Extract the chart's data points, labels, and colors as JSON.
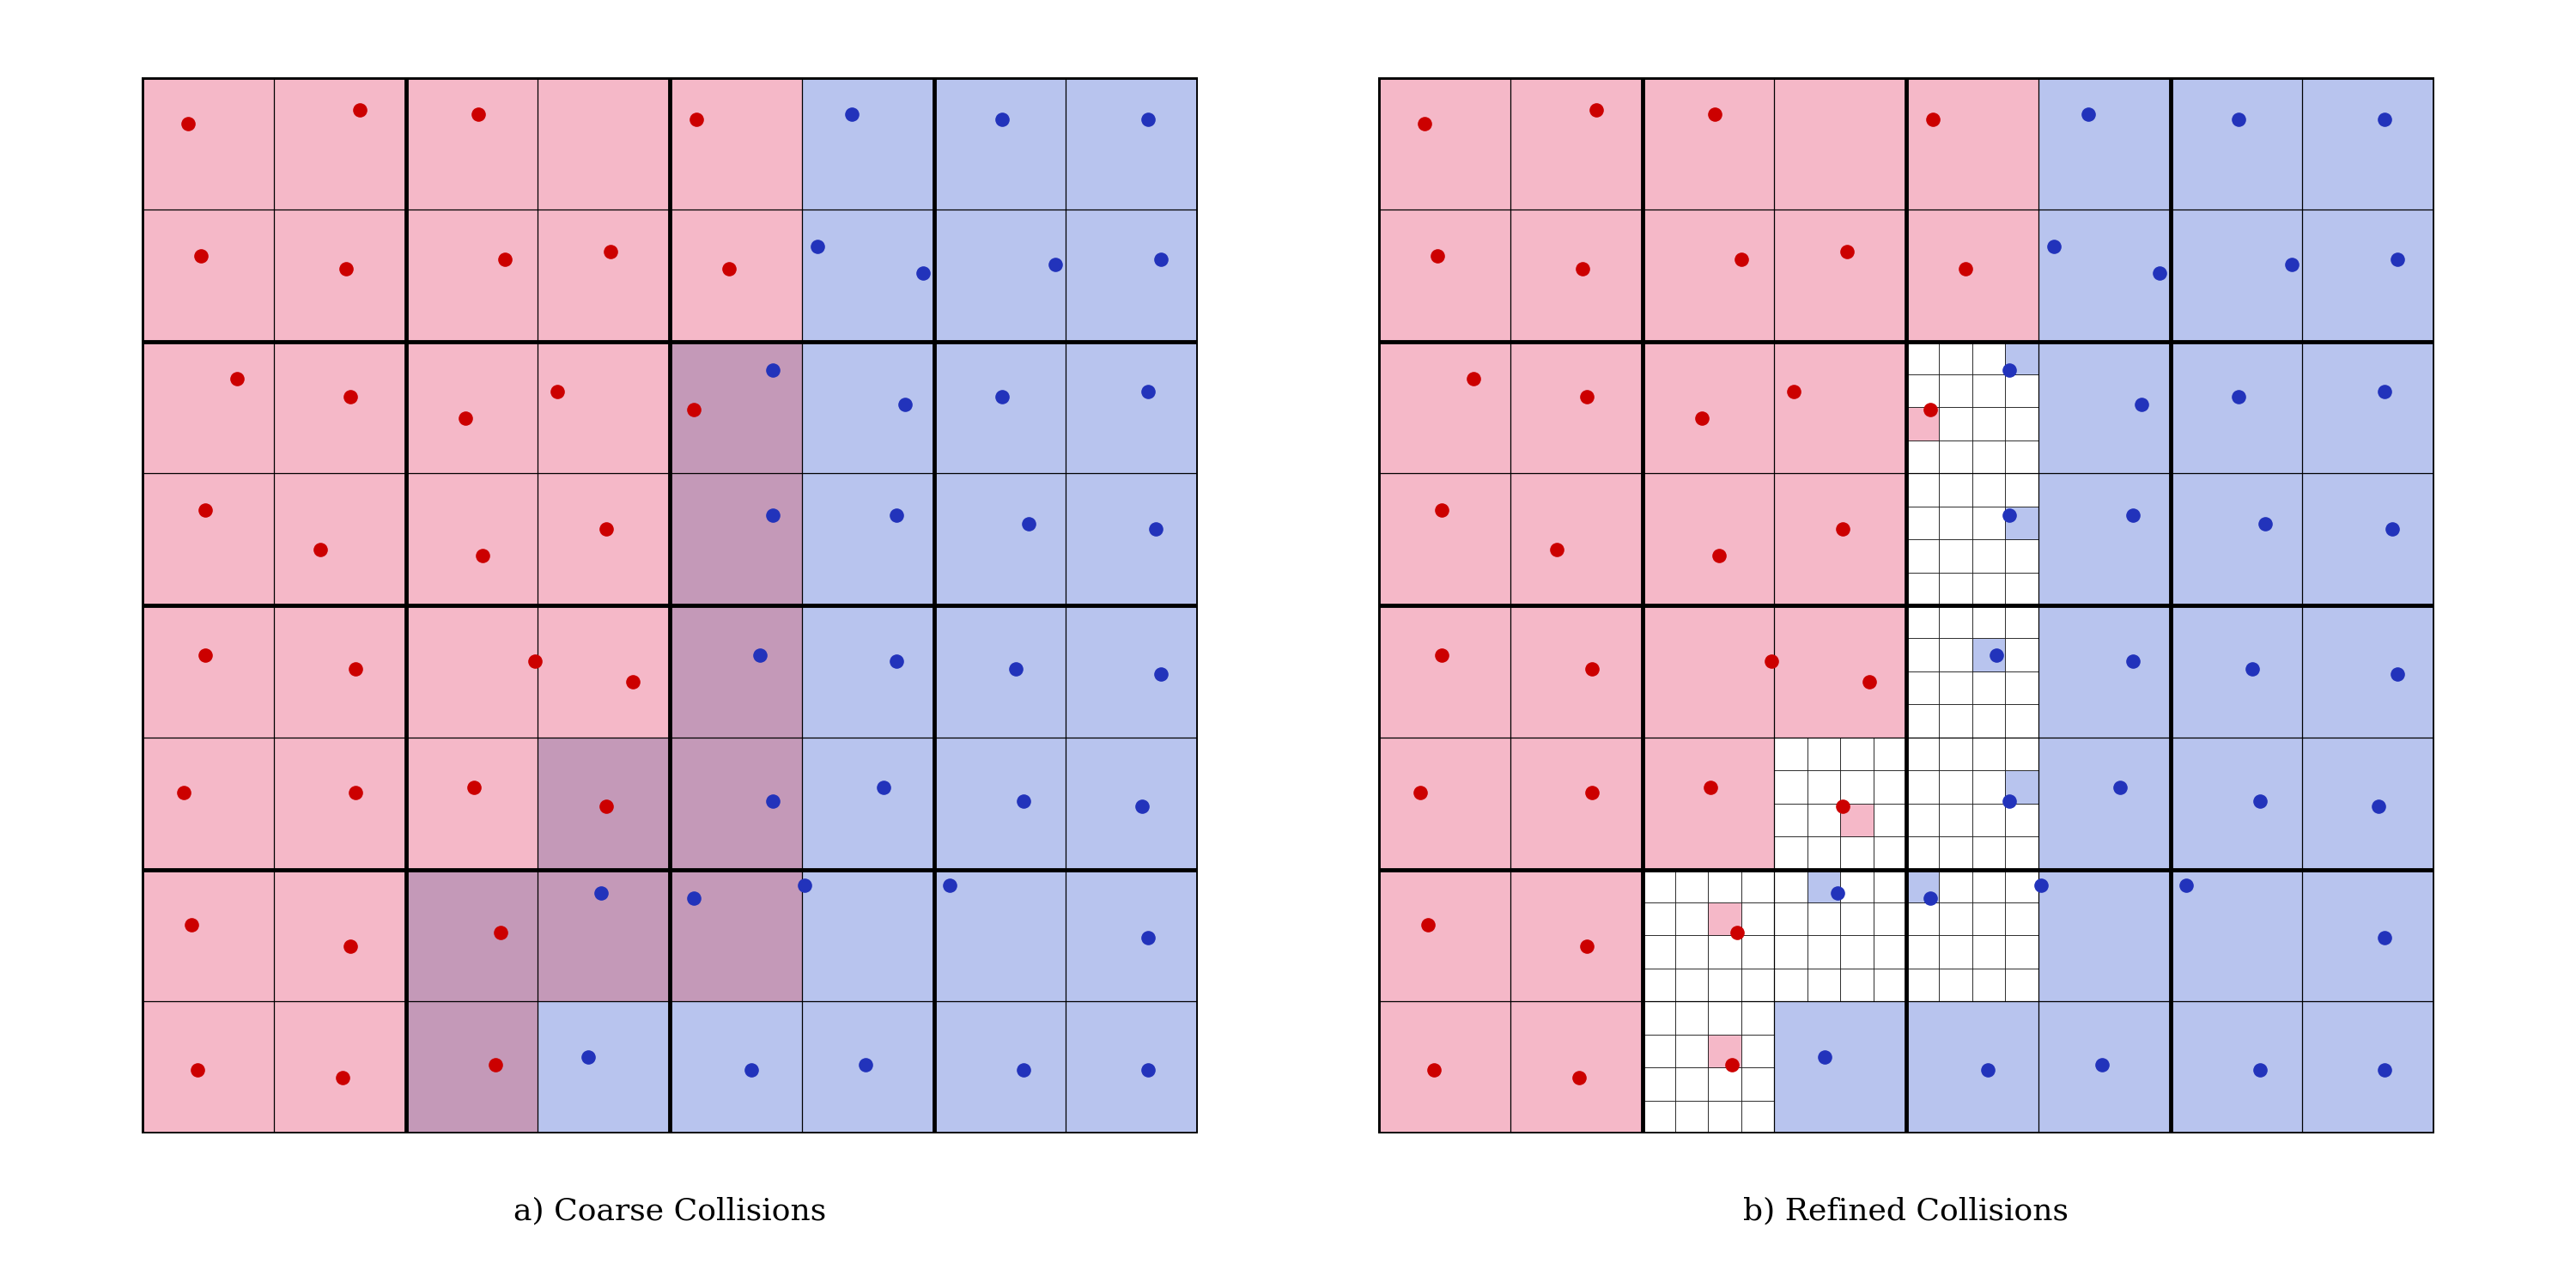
{
  "title_left": "a) Coarse Collisions",
  "title_right": "b) Refined Collisions",
  "title_fontsize": 26,
  "color_red_file": "#F5B8C8",
  "color_blue_file": "#B8C4EE",
  "color_purple": "#C499B8",
  "color_white": "#FFFFFF",
  "red_points": [
    [
      0.35,
      7.65
    ],
    [
      1.65,
      7.75
    ],
    [
      2.55,
      7.72
    ],
    [
      4.2,
      7.68
    ],
    [
      0.45,
      6.65
    ],
    [
      1.55,
      6.55
    ],
    [
      2.75,
      6.62
    ],
    [
      3.55,
      6.68
    ],
    [
      4.45,
      6.55
    ],
    [
      0.72,
      5.72
    ],
    [
      1.58,
      5.58
    ],
    [
      2.45,
      5.42
    ],
    [
      3.15,
      5.62
    ],
    [
      4.18,
      5.48
    ],
    [
      0.48,
      4.72
    ],
    [
      1.35,
      4.42
    ],
    [
      2.58,
      4.38
    ],
    [
      3.52,
      4.58
    ],
    [
      0.48,
      3.62
    ],
    [
      1.62,
      3.52
    ],
    [
      2.98,
      3.58
    ],
    [
      3.72,
      3.42
    ],
    [
      0.32,
      2.58
    ],
    [
      1.62,
      2.58
    ],
    [
      2.52,
      2.62
    ],
    [
      3.52,
      2.48
    ],
    [
      0.38,
      1.58
    ],
    [
      1.58,
      1.42
    ],
    [
      2.72,
      1.52
    ],
    [
      0.42,
      0.48
    ],
    [
      1.52,
      0.42
    ],
    [
      2.68,
      0.52
    ]
  ],
  "blue_points": [
    [
      5.38,
      7.72
    ],
    [
      6.52,
      7.68
    ],
    [
      7.62,
      7.68
    ],
    [
      5.12,
      6.72
    ],
    [
      5.92,
      6.52
    ],
    [
      6.92,
      6.58
    ],
    [
      7.72,
      6.62
    ],
    [
      4.78,
      5.78
    ],
    [
      5.78,
      5.52
    ],
    [
      6.52,
      5.58
    ],
    [
      7.62,
      5.62
    ],
    [
      4.78,
      4.68
    ],
    [
      5.72,
      4.68
    ],
    [
      6.72,
      4.62
    ],
    [
      7.68,
      4.58
    ],
    [
      4.68,
      3.62
    ],
    [
      5.72,
      3.58
    ],
    [
      6.62,
      3.52
    ],
    [
      7.72,
      3.48
    ],
    [
      4.78,
      2.52
    ],
    [
      5.62,
      2.62
    ],
    [
      6.68,
      2.52
    ],
    [
      7.58,
      2.48
    ],
    [
      3.48,
      1.82
    ],
    [
      4.18,
      1.78
    ],
    [
      5.02,
      1.88
    ],
    [
      6.12,
      1.88
    ],
    [
      7.62,
      1.48
    ],
    [
      3.38,
      0.58
    ],
    [
      4.62,
      0.48
    ],
    [
      5.48,
      0.52
    ],
    [
      6.68,
      0.48
    ],
    [
      7.62,
      0.48
    ]
  ],
  "cell_colors": {
    "0,7": "red",
    "1,7": "red",
    "2,7": "red",
    "3,7": "red",
    "4,7": "red",
    "5,7": "blue",
    "6,7": "blue",
    "7,7": "blue",
    "0,6": "red",
    "1,6": "red",
    "2,6": "red",
    "3,6": "red",
    "4,6": "red",
    "5,6": "blue",
    "6,6": "blue",
    "7,6": "blue",
    "0,5": "red",
    "1,5": "red",
    "2,5": "red",
    "3,5": "red",
    "4,5": "purple",
    "5,5": "blue",
    "6,5": "blue",
    "7,5": "blue",
    "0,4": "red",
    "1,4": "red",
    "2,4": "red",
    "3,4": "red",
    "4,4": "purple",
    "5,4": "blue",
    "6,4": "blue",
    "7,4": "blue",
    "0,3": "red",
    "1,3": "red",
    "2,3": "red",
    "3,3": "red",
    "4,3": "purple",
    "5,3": "blue",
    "6,3": "blue",
    "7,3": "blue",
    "0,2": "red",
    "1,2": "red",
    "2,2": "red",
    "3,2": "purple",
    "4,2": "purple",
    "5,2": "blue",
    "6,2": "blue",
    "7,2": "blue",
    "0,1": "red",
    "1,1": "red",
    "2,1": "purple",
    "3,1": "purple",
    "4,1": "purple",
    "5,1": "blue",
    "6,1": "blue",
    "7,1": "blue",
    "0,0": "red",
    "1,0": "red",
    "2,0": "purple",
    "3,0": "blue",
    "4,0": "blue",
    "5,0": "blue",
    "6,0": "blue",
    "7,0": "blue"
  },
  "background_color": "#FFFFFF"
}
